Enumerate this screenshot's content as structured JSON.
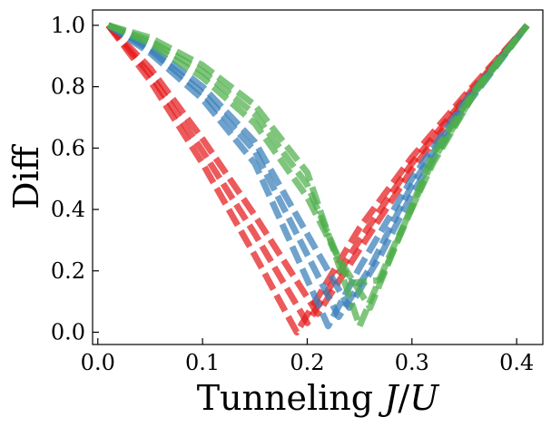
{
  "chart_data": {
    "type": "line",
    "xlabel": "Tunneling J/U",
    "xlabel_parts": {
      "prefix": "Tunneling ",
      "var1": "J",
      "sep": "/",
      "var2": "U"
    },
    "ylabel": "Diff",
    "xlim": [
      -0.005,
      0.425
    ],
    "ylim": [
      -0.04,
      1.05
    ],
    "xticks": [
      0.0,
      0.1,
      0.2,
      0.3,
      0.4
    ],
    "xtick_labels": [
      "0.0",
      "0.1",
      "0.2",
      "0.3",
      "0.4"
    ],
    "yticks": [
      0.0,
      0.2,
      0.4,
      0.6,
      0.8,
      1.0
    ],
    "ytick_labels": [
      "0.0",
      "0.2",
      "0.4",
      "0.6",
      "0.8",
      "1.0"
    ],
    "grid": false,
    "line_style": "dashed",
    "colors": {
      "red": "#e41a1c",
      "blue": "#377eb8",
      "green": "#4daf4a"
    },
    "series": [
      {
        "color": "red",
        "x": [
          0.01,
          0.05,
          0.1,
          0.15,
          0.19,
          0.25,
          0.3,
          0.35,
          0.41
        ],
        "values": [
          1.0,
          0.82,
          0.55,
          0.25,
          0.0,
          0.34,
          0.57,
          0.77,
          1.0
        ]
      },
      {
        "color": "red",
        "x": [
          0.01,
          0.05,
          0.1,
          0.15,
          0.2,
          0.25,
          0.3,
          0.35,
          0.41
        ],
        "values": [
          1.0,
          0.84,
          0.59,
          0.32,
          0.03,
          0.3,
          0.55,
          0.76,
          1.0
        ]
      },
      {
        "color": "red",
        "x": [
          0.01,
          0.05,
          0.1,
          0.15,
          0.21,
          0.25,
          0.3,
          0.35,
          0.41
        ],
        "values": [
          1.0,
          0.86,
          0.63,
          0.38,
          0.06,
          0.27,
          0.53,
          0.75,
          1.0
        ]
      },
      {
        "color": "blue",
        "x": [
          0.01,
          0.05,
          0.1,
          0.15,
          0.22,
          0.25,
          0.3,
          0.35,
          0.41
        ],
        "values": [
          1.0,
          0.91,
          0.76,
          0.55,
          0.02,
          0.21,
          0.5,
          0.75,
          1.0
        ]
      },
      {
        "color": "blue",
        "x": [
          0.01,
          0.05,
          0.1,
          0.15,
          0.23,
          0.26,
          0.3,
          0.35,
          0.41
        ],
        "values": [
          1.0,
          0.92,
          0.78,
          0.59,
          0.05,
          0.21,
          0.48,
          0.74,
          1.0
        ]
      },
      {
        "color": "blue",
        "x": [
          0.01,
          0.05,
          0.1,
          0.15,
          0.24,
          0.27,
          0.3,
          0.35,
          0.41
        ],
        "values": [
          1.0,
          0.93,
          0.8,
          0.62,
          0.08,
          0.25,
          0.45,
          0.73,
          1.0
        ]
      },
      {
        "color": "green",
        "x": [
          0.01,
          0.05,
          0.1,
          0.15,
          0.2,
          0.25,
          0.28,
          0.32,
          0.36,
          0.41
        ],
        "values": [
          1.0,
          0.96,
          0.87,
          0.74,
          0.52,
          0.02,
          0.26,
          0.55,
          0.78,
          1.0
        ]
      },
      {
        "color": "green",
        "x": [
          0.01,
          0.05,
          0.1,
          0.15,
          0.2,
          0.24,
          0.27,
          0.32,
          0.36,
          0.41
        ],
        "values": [
          1.0,
          0.95,
          0.85,
          0.71,
          0.48,
          0.16,
          0.17,
          0.56,
          0.78,
          1.0
        ]
      },
      {
        "color": "green",
        "x": [
          0.01,
          0.05,
          0.1,
          0.15,
          0.2,
          0.23,
          0.26,
          0.32,
          0.36,
          0.41
        ],
        "values": [
          1.0,
          0.94,
          0.83,
          0.68,
          0.44,
          0.24,
          0.08,
          0.58,
          0.79,
          1.0
        ]
      }
    ]
  }
}
